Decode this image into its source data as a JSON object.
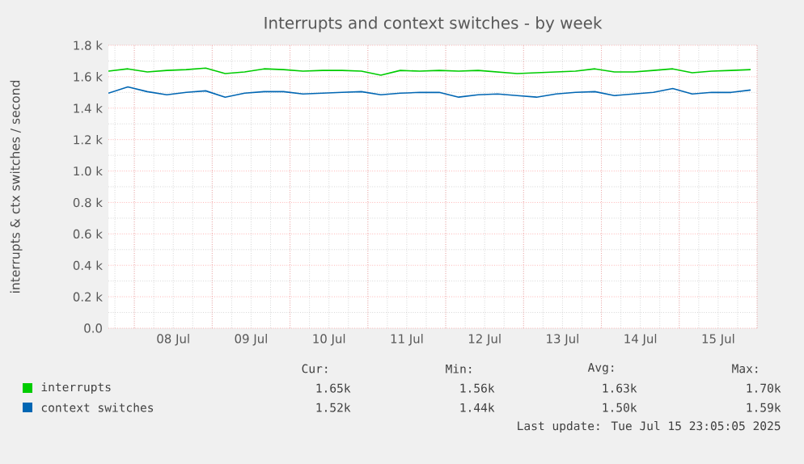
{
  "chart_data": {
    "type": "line",
    "title": "Interrupts and context switches - by week",
    "ylabel": "interrupts & ctx switches / second",
    "x": [
      "2025-07-07T16:00",
      "2025-07-07T22:00",
      "2025-07-08T04:00",
      "2025-07-08T10:00",
      "2025-07-08T16:00",
      "2025-07-08T22:00",
      "2025-07-09T04:00",
      "2025-07-09T10:00",
      "2025-07-09T16:00",
      "2025-07-09T22:00",
      "2025-07-10T04:00",
      "2025-07-10T10:00",
      "2025-07-10T16:00",
      "2025-07-10T22:00",
      "2025-07-11T04:00",
      "2025-07-11T10:00",
      "2025-07-11T16:00",
      "2025-07-11T22:00",
      "2025-07-12T04:00",
      "2025-07-12T10:00",
      "2025-07-12T16:00",
      "2025-07-12T22:00",
      "2025-07-13T04:00",
      "2025-07-13T10:00",
      "2025-07-13T16:00",
      "2025-07-13T22:00",
      "2025-07-14T04:00",
      "2025-07-14T10:00",
      "2025-07-14T16:00",
      "2025-07-14T22:00",
      "2025-07-15T04:00",
      "2025-07-15T10:00",
      "2025-07-15T16:00",
      "2025-07-15T22:00"
    ],
    "series": [
      {
        "name": "interrupts",
        "color": "#00cc00",
        "values": [
          1635,
          1650,
          1630,
          1640,
          1645,
          1655,
          1620,
          1630,
          1650,
          1645,
          1635,
          1640,
          1640,
          1635,
          1610,
          1640,
          1635,
          1640,
          1635,
          1640,
          1630,
          1620,
          1625,
          1630,
          1635,
          1650,
          1630,
          1630,
          1640,
          1650,
          1625,
          1635,
          1640,
          1645
        ]
      },
      {
        "name": "context switches",
        "color": "#0066b3",
        "values": [
          1495,
          1535,
          1505,
          1485,
          1500,
          1510,
          1470,
          1495,
          1505,
          1505,
          1490,
          1495,
          1500,
          1505,
          1485,
          1495,
          1500,
          1500,
          1470,
          1485,
          1490,
          1480,
          1470,
          1490,
          1500,
          1505,
          1480,
          1490,
          1500,
          1525,
          1490,
          1500,
          1500,
          1515
        ]
      }
    ],
    "xlim": [
      "2025-07-07T16:00",
      "2025-07-16T00:00"
    ],
    "xticks": [
      {
        "value": "2025-07-08T12:00",
        "label": "08 Jul"
      },
      {
        "value": "2025-07-09T12:00",
        "label": "09 Jul"
      },
      {
        "value": "2025-07-10T12:00",
        "label": "10 Jul"
      },
      {
        "value": "2025-07-11T12:00",
        "label": "11 Jul"
      },
      {
        "value": "2025-07-12T12:00",
        "label": "12 Jul"
      },
      {
        "value": "2025-07-13T12:00",
        "label": "13 Jul"
      },
      {
        "value": "2025-07-14T12:00",
        "label": "14 Jul"
      },
      {
        "value": "2025-07-15T12:00",
        "label": "15 Jul"
      }
    ],
    "ylim": [
      0,
      1800
    ],
    "yticks": [
      {
        "value": 0,
        "label": "0.0"
      },
      {
        "value": 200,
        "label": "0.2 k"
      },
      {
        "value": 400,
        "label": "0.4 k"
      },
      {
        "value": 600,
        "label": "0.6 k"
      },
      {
        "value": 800,
        "label": "0.8 k"
      },
      {
        "value": 1000,
        "label": "1.0 k"
      },
      {
        "value": 1200,
        "label": "1.2 k"
      },
      {
        "value": 1400,
        "label": "1.4 k"
      },
      {
        "value": 1600,
        "label": "1.6 k"
      },
      {
        "value": 1800,
        "label": "1.8 k"
      }
    ],
    "grid": true,
    "legend": "bottom",
    "marker": "none",
    "line_style": "solid",
    "annotations": [
      "Cur:",
      "Min:",
      "Avg:",
      "Max:",
      "1.65k",
      "1.56k",
      "1.63k",
      "1.70k",
      "1.52k",
      "1.44k",
      "1.50k",
      "1.59k",
      "Last update: Tue Jul 15 23:05:05 2025"
    ]
  }
}
